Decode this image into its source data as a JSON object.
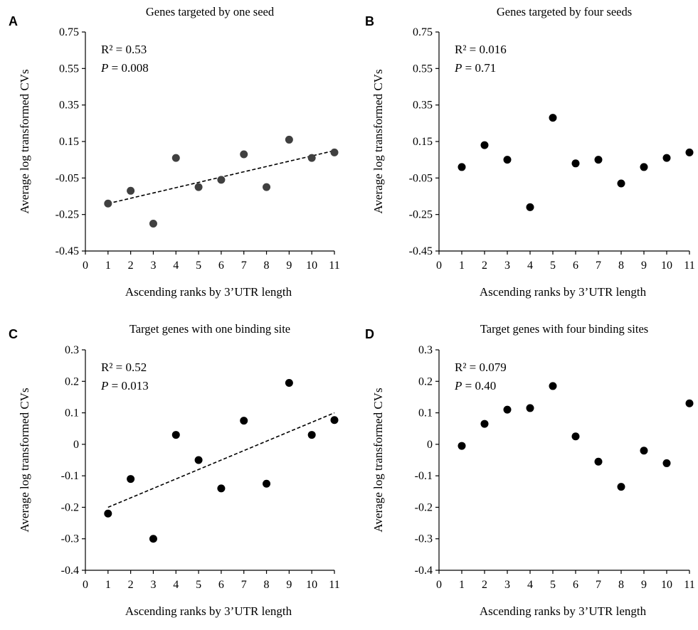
{
  "chart_data": [
    {
      "panel": "A",
      "type": "scatter",
      "title": "Genes targeted by one seed",
      "xlabel": "Ascending ranks by 3’UTR length",
      "ylabel": "Average log transformed CVs",
      "xlim": [
        0,
        11
      ],
      "ylim": [
        -0.45,
        0.75
      ],
      "xticks": [
        "0",
        "1",
        "2",
        "3",
        "4",
        "5",
        "6",
        "7",
        "8",
        "9",
        "10",
        "11"
      ],
      "yticks": [
        "0.75",
        "0.55",
        "0.35",
        "0.15",
        "-0.05",
        "-0.25",
        "-0.45"
      ],
      "x": [
        1,
        2,
        3,
        4,
        5,
        6,
        7,
        8,
        9,
        10,
        11
      ],
      "y": [
        -0.19,
        -0.12,
        -0.3,
        0.06,
        -0.1,
        -0.06,
        0.08,
        -0.1,
        0.16,
        0.06,
        0.09
      ],
      "trendline": {
        "from": [
          1,
          -0.19
        ],
        "to": [
          11,
          0.1
        ]
      },
      "stats": {
        "r2": "R² = 0.53",
        "p_label": "P",
        "p_value": " = 0.008"
      },
      "point_color": "#404040",
      "grid": false
    },
    {
      "panel": "B",
      "type": "scatter",
      "title": "Genes targeted by four seeds",
      "xlabel": "Ascending ranks by 3’UTR length",
      "ylabel": "Average log transformed CVs",
      "xlim": [
        0,
        11
      ],
      "ylim": [
        -0.45,
        0.75
      ],
      "xticks": [
        "0",
        "1",
        "2",
        "3",
        "4",
        "5",
        "6",
        "7",
        "8",
        "9",
        "10",
        "11"
      ],
      "yticks": [
        "0.75",
        "0.55",
        "0.35",
        "0.15",
        "-0.05",
        "-0.25",
        "-0.45"
      ],
      "x": [
        1,
        2,
        3,
        4,
        5,
        6,
        7,
        8,
        9,
        10,
        11
      ],
      "y": [
        0.01,
        0.13,
        0.05,
        -0.21,
        0.28,
        0.03,
        0.05,
        -0.08,
        0.01,
        0.06,
        0.09
      ],
      "trendline": null,
      "stats": {
        "r2": "R² = 0.016",
        "p_label": "P",
        "p_value": " = 0.71"
      },
      "point_color": "#000000",
      "grid": false
    },
    {
      "panel": "C",
      "type": "scatter",
      "title": "Target genes with one binding site",
      "xlabel": "Ascending ranks by 3’UTR length",
      "ylabel": "Average log transformed CVs",
      "xlim": [
        0,
        11
      ],
      "ylim": [
        -0.4,
        0.3
      ],
      "xticks": [
        "0",
        "1",
        "2",
        "3",
        "4",
        "5",
        "6",
        "7",
        "8",
        "9",
        "10",
        "11"
      ],
      "yticks": [
        "0.3",
        "0.2",
        "0.1",
        "0",
        "-0.1",
        "-0.2",
        "-0.3",
        "-0.4"
      ],
      "x": [
        1,
        2,
        3,
        4,
        5,
        6,
        7,
        8,
        9,
        10,
        11
      ],
      "y": [
        -0.22,
        -0.11,
        -0.3,
        0.03,
        -0.05,
        -0.14,
        0.075,
        -0.125,
        0.195,
        0.03,
        0.077
      ],
      "trendline": {
        "from": [
          1,
          -0.2
        ],
        "to": [
          11,
          0.1
        ]
      },
      "stats": {
        "r2": "R² = 0.52",
        "p_label": "P",
        "p_value": " = 0.013"
      },
      "point_color": "#000000",
      "grid": false
    },
    {
      "panel": "D",
      "type": "scatter",
      "title": "Target genes with four binding sites",
      "xlabel": "Ascending ranks by 3’UTR length",
      "ylabel": "Average log transformed CVs",
      "xlim": [
        0,
        11
      ],
      "ylim": [
        -0.4,
        0.3
      ],
      "xticks": [
        "0",
        "1",
        "2",
        "3",
        "4",
        "5",
        "6",
        "7",
        "8",
        "9",
        "10",
        "11"
      ],
      "yticks": [
        "0.3",
        "0.2",
        "0.1",
        "0",
        "-0.1",
        "-0.2",
        "-0.3",
        "-0.4"
      ],
      "x": [
        1,
        2,
        3,
        4,
        5,
        6,
        7,
        8,
        9,
        10,
        11
      ],
      "y": [
        -0.005,
        0.065,
        0.11,
        0.115,
        0.185,
        0.025,
        -0.055,
        -0.135,
        -0.02,
        -0.06,
        0.13
      ],
      "trendline": null,
      "stats": {
        "r2": "R² = 0.079",
        "p_label": "P",
        "p_value": " = 0.40"
      },
      "point_color": "#000000",
      "grid": false
    }
  ]
}
